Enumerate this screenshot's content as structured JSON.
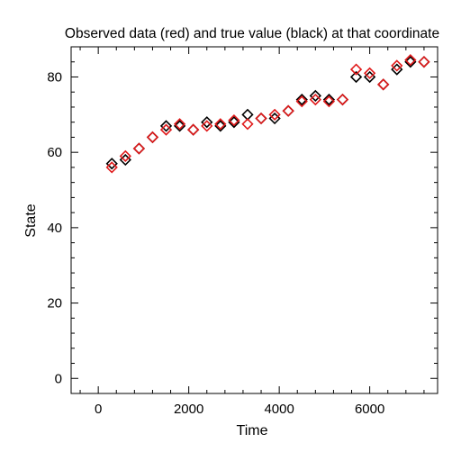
{
  "chart_data": {
    "type": "scatter",
    "title": "Observed data (red) and true value (black) at that coordinate",
    "xlabel": "Time",
    "ylabel": "State",
    "xlim": [
      -600,
      7500
    ],
    "ylim": [
      -4,
      88
    ],
    "x_ticks": [
      0,
      2000,
      4000,
      6000
    ],
    "y_ticks": [
      0,
      20,
      40,
      60,
      80
    ],
    "x_tick_labels": [
      "0",
      "2000",
      "4000",
      "6000"
    ],
    "y_tick_labels": [
      "0",
      "20",
      "40",
      "60",
      "80"
    ],
    "grid": false,
    "marker": "diamond-open",
    "series": [
      {
        "color": "#000000",
        "x": [
          300,
          600,
          900,
          1200,
          1500,
          1800,
          2100,
          2400,
          2700,
          3000,
          3300,
          3600,
          3900,
          4200,
          4500,
          4800,
          5100,
          5400,
          5700,
          6000,
          6300,
          6600,
          6900,
          7200
        ],
        "y": [
          57,
          58,
          61,
          64,
          67,
          67,
          66,
          68,
          67,
          68,
          70,
          69,
          69,
          71,
          74,
          75,
          74,
          74,
          80,
          80,
          78,
          82,
          84,
          84
        ]
      },
      {
        "color": "#e0191a",
        "x": [
          300,
          600,
          900,
          1200,
          1500,
          1800,
          2100,
          2400,
          2700,
          3000,
          3300,
          3600,
          3900,
          4200,
          4500,
          4800,
          5100,
          5400,
          5700,
          6000,
          6300,
          6600,
          6900,
          7200
        ],
        "y": [
          56,
          59,
          61,
          64,
          66,
          67.5,
          66,
          67,
          67.5,
          68.5,
          67.5,
          69,
          70,
          71,
          73.5,
          74,
          73.5,
          74,
          82,
          81,
          78,
          83,
          84.5,
          84
        ]
      }
    ]
  }
}
